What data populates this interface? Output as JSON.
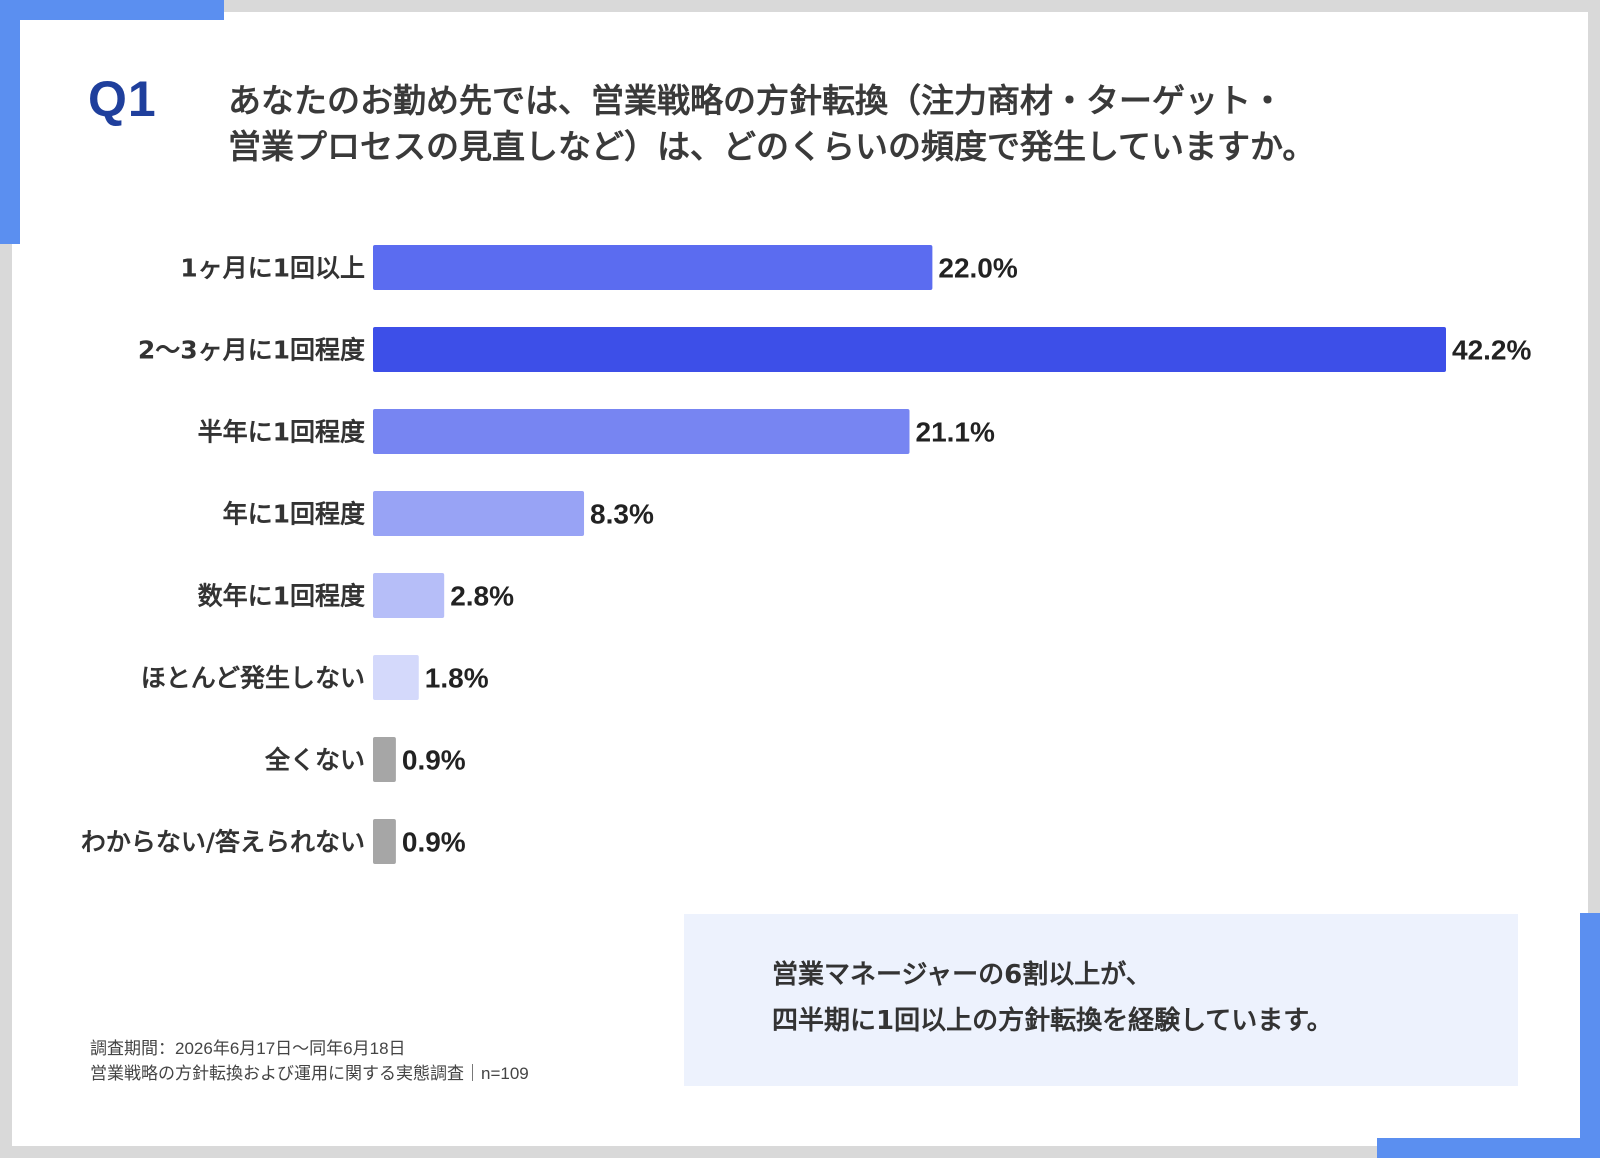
{
  "question": {
    "label": "Q1",
    "line1": "あなたのお勤め先では、営業戦略の方針転換（注力商材・ターゲット・",
    "line2": "営業プロセスの見直しなど）は、どのくらいの頻度で発生していますか。"
  },
  "chart_data": {
    "type": "bar",
    "orientation": "horizontal",
    "categories": [
      "1ヶ月に1回以上",
      "2〜3ヶ月に1回程度",
      "半年に1回程度",
      "年に1回程度",
      "数年に1回程度",
      "ほとんど発生しない",
      "全くない",
      "わからない/答えられない"
    ],
    "values": [
      22.0,
      42.2,
      21.1,
      8.3,
      2.8,
      1.8,
      0.9,
      0.9
    ],
    "value_labels": [
      "22.0%",
      "42.2%",
      "21.1%",
      "8.3%",
      "2.8%",
      "1.8%",
      "0.9%",
      "0.9%"
    ],
    "bar_colors": [
      "#5b6cf0",
      "#3d4fe8",
      "#7785f2",
      "#98a3f5",
      "#b6bef8",
      "#d4d9fb",
      "#a6a6a6",
      "#a6a6a6"
    ],
    "xlim": [
      0,
      42.2
    ],
    "grid": false,
    "legend": "none"
  },
  "summary": {
    "line1": "営業マネージャーの6割以上が、",
    "line2": "四半期に1回以上の方針転換を経験しています。"
  },
  "footnote": {
    "line1": "調査期間：2026年6月17日〜同年6月18日",
    "line2": "営業戦略の方針転換および運用に関する実態調査｜n=109"
  },
  "colors": {
    "accent": "#5b8ff0",
    "question_label": "#1f3f9c",
    "summary_bg": "#edf2fd"
  }
}
